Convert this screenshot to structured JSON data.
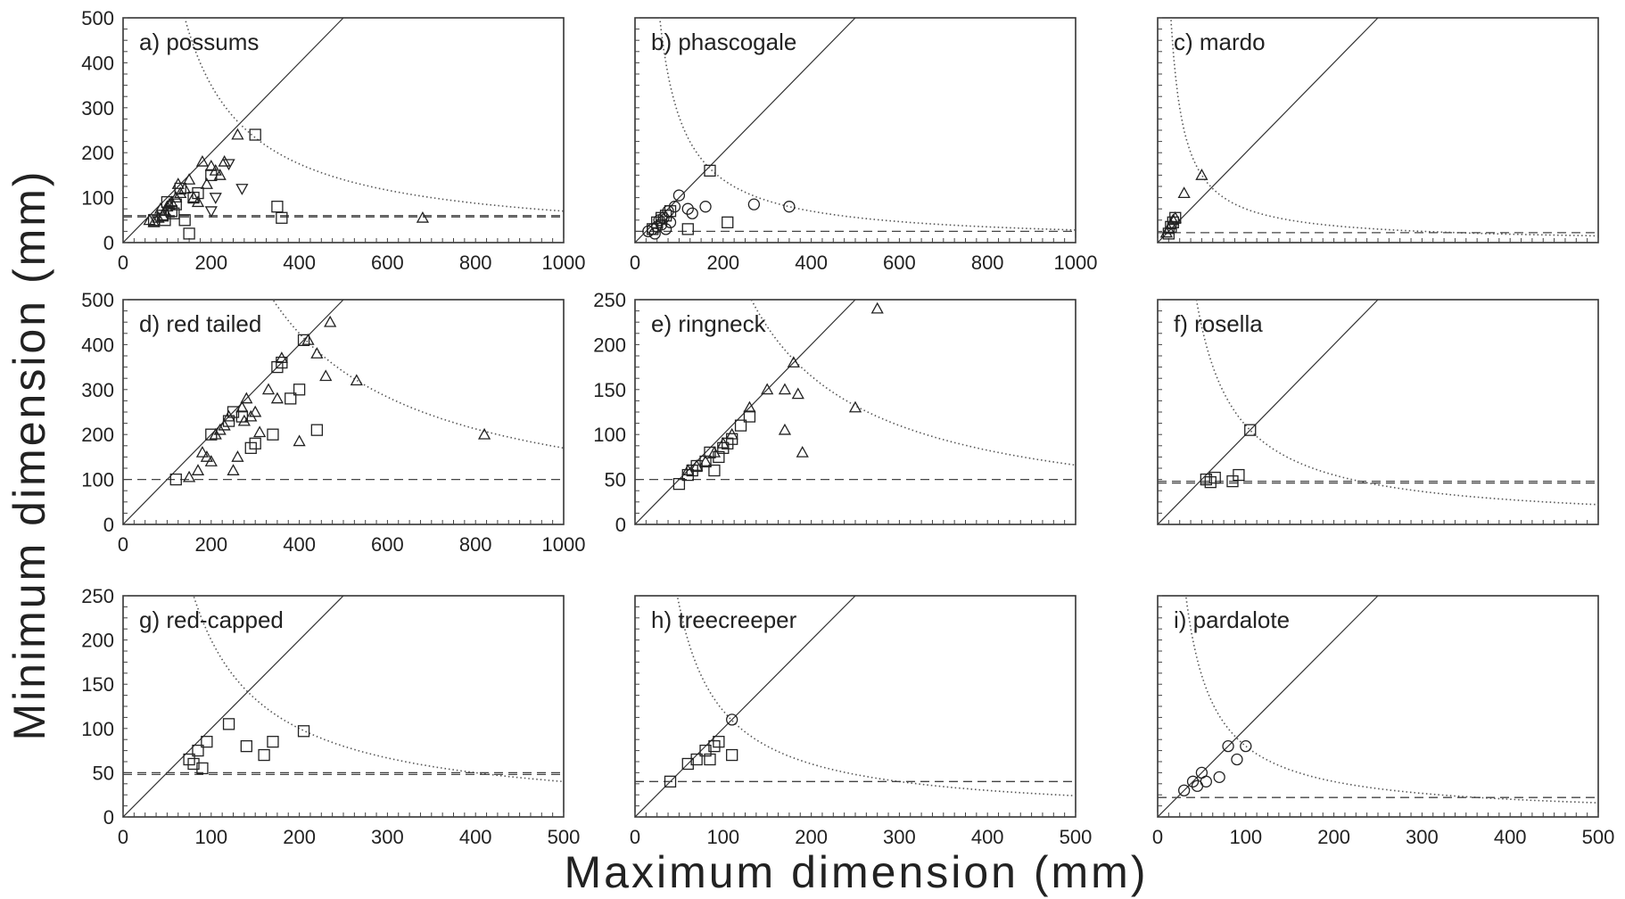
{
  "xlabel": "Maximum dimension (mm)",
  "ylabel": "Minimum dimension (mm)",
  "chart_data": [
    {
      "type": "scatter",
      "title": "a) possums",
      "xlim": [
        0,
        1000
      ],
      "ylim": [
        0,
        500
      ],
      "xticks": [
        0,
        200,
        400,
        600,
        800,
        1000
      ],
      "yticks": [
        0,
        100,
        200,
        300,
        400,
        500
      ],
      "show_x_ticks": true,
      "show_y_ticks": true,
      "reference_lines": {
        "identity": true,
        "hyperbola_product": 70000,
        "min_threshold": 57,
        "min_threshold_2": 60
      },
      "series": [
        {
          "marker": "triangle",
          "points": [
            [
              60,
              50
            ],
            [
              70,
              45
            ],
            [
              80,
              55
            ],
            [
              90,
              60
            ],
            [
              95,
              70
            ],
            [
              100,
              80
            ],
            [
              110,
              90
            ],
            [
              120,
              100
            ],
            [
              130,
              110
            ],
            [
              140,
              120
            ],
            [
              150,
              140
            ],
            [
              160,
              100
            ],
            [
              170,
              90
            ],
            [
              180,
              180
            ],
            [
              190,
              130
            ],
            [
              200,
              170
            ],
            [
              210,
              160
            ],
            [
              220,
              150
            ],
            [
              230,
              180
            ],
            [
              260,
              240
            ],
            [
              680,
              55
            ],
            [
              85,
              75
            ],
            [
              105,
              85
            ],
            [
              125,
              130
            ]
          ]
        },
        {
          "marker": "square",
          "points": [
            [
              70,
              50
            ],
            [
              90,
              60
            ],
            [
              100,
              90
            ],
            [
              110,
              70
            ],
            [
              120,
              85
            ],
            [
              130,
              120
            ],
            [
              140,
              50
            ],
            [
              150,
              20
            ],
            [
              160,
              100
            ],
            [
              170,
              110
            ],
            [
              200,
              150
            ],
            [
              300,
              240
            ],
            [
              350,
              80
            ],
            [
              360,
              55
            ],
            [
              95,
              50
            ],
            [
              115,
              65
            ]
          ]
        },
        {
          "marker": "triangle-down",
          "points": [
            [
              200,
              70
            ],
            [
              210,
              100
            ],
            [
              270,
              120
            ],
            [
              240,
              175
            ]
          ]
        }
      ]
    },
    {
      "type": "scatter",
      "title": "b) phascogale",
      "xlim": [
        0,
        1000
      ],
      "ylim": [
        0,
        500
      ],
      "xticks": [
        0,
        200,
        400,
        600,
        800,
        1000
      ],
      "yticks": [
        0,
        100,
        200,
        300,
        400,
        500
      ],
      "show_x_ticks": true,
      "show_y_ticks": false,
      "reference_lines": {
        "identity": true,
        "hyperbola_product": 28000,
        "min_threshold": 25
      },
      "series": [
        {
          "marker": "circle",
          "points": [
            [
              30,
              25
            ],
            [
              40,
              30
            ],
            [
              45,
              20
            ],
            [
              50,
              35
            ],
            [
              55,
              50
            ],
            [
              60,
              40
            ],
            [
              70,
              30
            ],
            [
              80,
              45
            ],
            [
              90,
              80
            ],
            [
              100,
              105
            ],
            [
              120,
              75
            ],
            [
              130,
              65
            ],
            [
              160,
              80
            ],
            [
              270,
              85
            ],
            [
              350,
              80
            ],
            [
              65,
              55
            ],
            [
              75,
              70
            ]
          ]
        },
        {
          "marker": "square",
          "points": [
            [
              40,
              30
            ],
            [
              50,
              45
            ],
            [
              60,
              55
            ],
            [
              70,
              60
            ],
            [
              120,
              30
            ],
            [
              170,
              160
            ],
            [
              210,
              45
            ],
            [
              80,
              70
            ]
          ]
        }
      ]
    },
    {
      "type": "scatter",
      "title": "c) mardo",
      "xlim": [
        0,
        1000
      ],
      "ylim": [
        0,
        500
      ],
      "xticks": [],
      "yticks": [],
      "show_x_ticks": false,
      "show_y_ticks": false,
      "reference_lines": {
        "identity": true,
        "hyperbola_product": 15000,
        "min_threshold": 22
      },
      "series": [
        {
          "marker": "triangle",
          "points": [
            [
              20,
              22
            ],
            [
              25,
              30
            ],
            [
              30,
              40
            ],
            [
              35,
              50
            ],
            [
              40,
              55
            ],
            [
              60,
              110
            ],
            [
              100,
              150
            ]
          ]
        },
        {
          "marker": "square",
          "points": [
            [
              25,
              20
            ],
            [
              30,
              35
            ],
            [
              35,
              45
            ],
            [
              40,
              55
            ]
          ]
        }
      ]
    },
    {
      "type": "scatter",
      "title": "d) red tailed",
      "xlim": [
        0,
        1000
      ],
      "ylim": [
        0,
        500
      ],
      "xticks": [
        0,
        200,
        400,
        600,
        800,
        1000
      ],
      "yticks": [
        0,
        100,
        200,
        300,
        400,
        500
      ],
      "show_x_ticks": true,
      "show_y_ticks": true,
      "reference_lines": {
        "identity": true,
        "hyperbola_product": 170000,
        "min_threshold": 100
      },
      "series": [
        {
          "marker": "triangle",
          "points": [
            [
              150,
              105
            ],
            [
              170,
              120
            ],
            [
              180,
              160
            ],
            [
              190,
              150
            ],
            [
              200,
              140
            ],
            [
              210,
              200
            ],
            [
              220,
              210
            ],
            [
              230,
              220
            ],
            [
              240,
              240
            ],
            [
              250,
              120
            ],
            [
              260,
              150
            ],
            [
              270,
              260
            ],
            [
              280,
              280
            ],
            [
              290,
              240
            ],
            [
              300,
              250
            ],
            [
              330,
              300
            ],
            [
              350,
              280
            ],
            [
              360,
              370
            ],
            [
              400,
              185
            ],
            [
              420,
              410
            ],
            [
              440,
              380
            ],
            [
              460,
              330
            ],
            [
              470,
              450
            ],
            [
              530,
              320
            ],
            [
              820,
              200
            ],
            [
              275,
              230
            ],
            [
              310,
              205
            ]
          ]
        },
        {
          "marker": "square",
          "points": [
            [
              120,
              100
            ],
            [
              200,
              200
            ],
            [
              240,
              230
            ],
            [
              250,
              250
            ],
            [
              300,
              180
            ],
            [
              340,
              200
            ],
            [
              350,
              350
            ],
            [
              360,
              360
            ],
            [
              380,
              280
            ],
            [
              400,
              300
            ],
            [
              410,
              410
            ],
            [
              440,
              210
            ],
            [
              270,
              240
            ],
            [
              290,
              170
            ]
          ]
        }
      ]
    },
    {
      "type": "scatter",
      "title": "e) ringneck",
      "xlim": [
        0,
        500
      ],
      "ylim": [
        0,
        250
      ],
      "xticks": [],
      "yticks": [
        0,
        50,
        100,
        150,
        200,
        250
      ],
      "show_x_ticks": false,
      "show_y_ticks": true,
      "reference_lines": {
        "identity": true,
        "hyperbola_product": 33000,
        "min_threshold": 50
      },
      "series": [
        {
          "marker": "triangle",
          "points": [
            [
              60,
              60
            ],
            [
              70,
              65
            ],
            [
              80,
              70
            ],
            [
              90,
              80
            ],
            [
              100,
              90
            ],
            [
              110,
              100
            ],
            [
              130,
              130
            ],
            [
              150,
              150
            ],
            [
              170,
              150
            ],
            [
              180,
              180
            ],
            [
              185,
              145
            ],
            [
              190,
              80
            ],
            [
              170,
              105
            ],
            [
              250,
              130
            ],
            [
              275,
              240
            ]
          ]
        },
        {
          "marker": "square",
          "points": [
            [
              50,
              45
            ],
            [
              60,
              55
            ],
            [
              65,
              60
            ],
            [
              70,
              65
            ],
            [
              80,
              70
            ],
            [
              85,
              80
            ],
            [
              90,
              60
            ],
            [
              95,
              75
            ],
            [
              100,
              85
            ],
            [
              105,
              90
            ],
            [
              110,
              95
            ],
            [
              120,
              110
            ],
            [
              130,
              120
            ]
          ]
        }
      ]
    },
    {
      "type": "scatter",
      "title": "f) rosella",
      "xlim": [
        0,
        500
      ],
      "ylim": [
        0,
        250
      ],
      "xticks": [],
      "yticks": [],
      "show_x_ticks": false,
      "show_y_ticks": false,
      "reference_lines": {
        "identity": true,
        "hyperbola_product": 11000,
        "min_threshold": 48,
        "min_threshold_2": 46
      },
      "series": [
        {
          "marker": "square",
          "points": [
            [
              55,
              50
            ],
            [
              60,
              47
            ],
            [
              65,
              52
            ],
            [
              85,
              48
            ],
            [
              92,
              55
            ],
            [
              105,
              105
            ]
          ]
        }
      ]
    },
    {
      "type": "scatter",
      "title": "g) red-capped",
      "xlim": [
        0,
        500
      ],
      "ylim": [
        0,
        250
      ],
      "xticks": [
        0,
        100,
        200,
        300,
        400,
        500
      ],
      "yticks": [
        0,
        50,
        100,
        150,
        200,
        250
      ],
      "show_x_ticks": true,
      "show_y_ticks": true,
      "reference_lines": {
        "identity": true,
        "hyperbola_product": 20000,
        "min_threshold": 50,
        "min_threshold_2": 48
      },
      "series": [
        {
          "marker": "square",
          "points": [
            [
              75,
              65
            ],
            [
              80,
              60
            ],
            [
              85,
              75
            ],
            [
              90,
              55
            ],
            [
              95,
              85
            ],
            [
              120,
              105
            ],
            [
              140,
              80
            ],
            [
              160,
              70
            ],
            [
              170,
              85
            ],
            [
              205,
              97
            ]
          ]
        }
      ]
    },
    {
      "type": "scatter",
      "title": "h) treecreeper",
      "xlim": [
        0,
        500
      ],
      "ylim": [
        0,
        250
      ],
      "xticks": [
        0,
        100,
        200,
        300,
        400,
        500
      ],
      "yticks": [],
      "show_x_ticks": true,
      "show_y_ticks": false,
      "reference_lines": {
        "identity": true,
        "hyperbola_product": 12000,
        "min_threshold": 40
      },
      "series": [
        {
          "marker": "square",
          "points": [
            [
              40,
              40
            ],
            [
              60,
              60
            ],
            [
              70,
              65
            ],
            [
              80,
              75
            ],
            [
              85,
              65
            ],
            [
              90,
              80
            ],
            [
              95,
              85
            ],
            [
              110,
              70
            ]
          ]
        },
        {
          "marker": "circle",
          "points": [
            [
              110,
              110
            ]
          ]
        }
      ]
    },
    {
      "type": "scatter",
      "title": "i) pardalote",
      "xlim": [
        0,
        500
      ],
      "ylim": [
        0,
        250
      ],
      "xticks": [
        0,
        100,
        200,
        300,
        400,
        500
      ],
      "yticks": [],
      "show_x_ticks": true,
      "show_y_ticks": false,
      "reference_lines": {
        "identity": true,
        "hyperbola_product": 8000,
        "min_threshold": 22
      },
      "series": [
        {
          "marker": "circle",
          "points": [
            [
              30,
              30
            ],
            [
              40,
              40
            ],
            [
              50,
              50
            ],
            [
              55,
              40
            ],
            [
              70,
              45
            ],
            [
              80,
              80
            ],
            [
              90,
              65
            ],
            [
              100,
              80
            ],
            [
              45,
              35
            ]
          ]
        }
      ]
    }
  ]
}
